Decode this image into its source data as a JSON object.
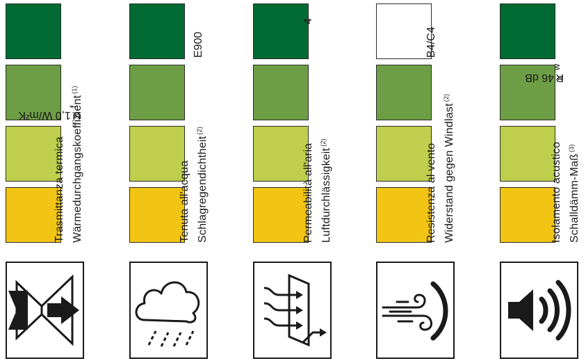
{
  "colors": {
    "dark_green": "#006a32",
    "mid_green": "#6d9e45",
    "light_green": "#bfcf4d",
    "yellow": "#f2c515",
    "empty": "#ffffff"
  },
  "columns": [
    {
      "id": "thermal",
      "swatches": [
        "#006a32",
        "#6d9e45",
        "#bfcf4d",
        "#f2c515"
      ],
      "label_it": "Trasmittanza termica",
      "label_de": "Wärmedurchgangskoeffizient",
      "note": "(1)",
      "value_main": "U",
      "value_sub": "f",
      "value_rest": " = 1,0 W/m²K",
      "icon": "thermal-transmittance-icon"
    },
    {
      "id": "water",
      "swatches": [
        "#006a32",
        "#6d9e45",
        "#bfcf4d",
        "#f2c515"
      ],
      "label_it": "Tenuta all'acqua",
      "label_de": "Schlagregendichtheit",
      "note": "(2)",
      "value": "E900",
      "icon": "rain-cloud-icon"
    },
    {
      "id": "air",
      "swatches": [
        "#006a32",
        "#6d9e45",
        "#bfcf4d",
        "#f2c515"
      ],
      "label_it": "Permeabilità all'aria",
      "label_de": "Luftdurchlässigkeit",
      "note": "(2)",
      "value": "4",
      "icon": "air-permeability-icon"
    },
    {
      "id": "wind",
      "swatches": [
        "#ffffff",
        "#6d9e45",
        "#bfcf4d",
        "#f2c515"
      ],
      "label_it": "Resistenza al vento",
      "label_de": "Widerstand gegen Windlast",
      "note": "(2)",
      "value": "B4/C4",
      "icon": "wind-resistance-icon"
    },
    {
      "id": "acoustic",
      "swatches": [
        "#006a32",
        "#6d9e45",
        "#bfcf4d",
        "#f2c515"
      ],
      "label_it": "Isolamento acustico",
      "label_de": "Schalldämm-Maß",
      "note": "(3)",
      "value_main": "R",
      "value_sub": "w",
      "value_rest": " = 46 dB",
      "icon": "speaker-sound-icon"
    }
  ]
}
